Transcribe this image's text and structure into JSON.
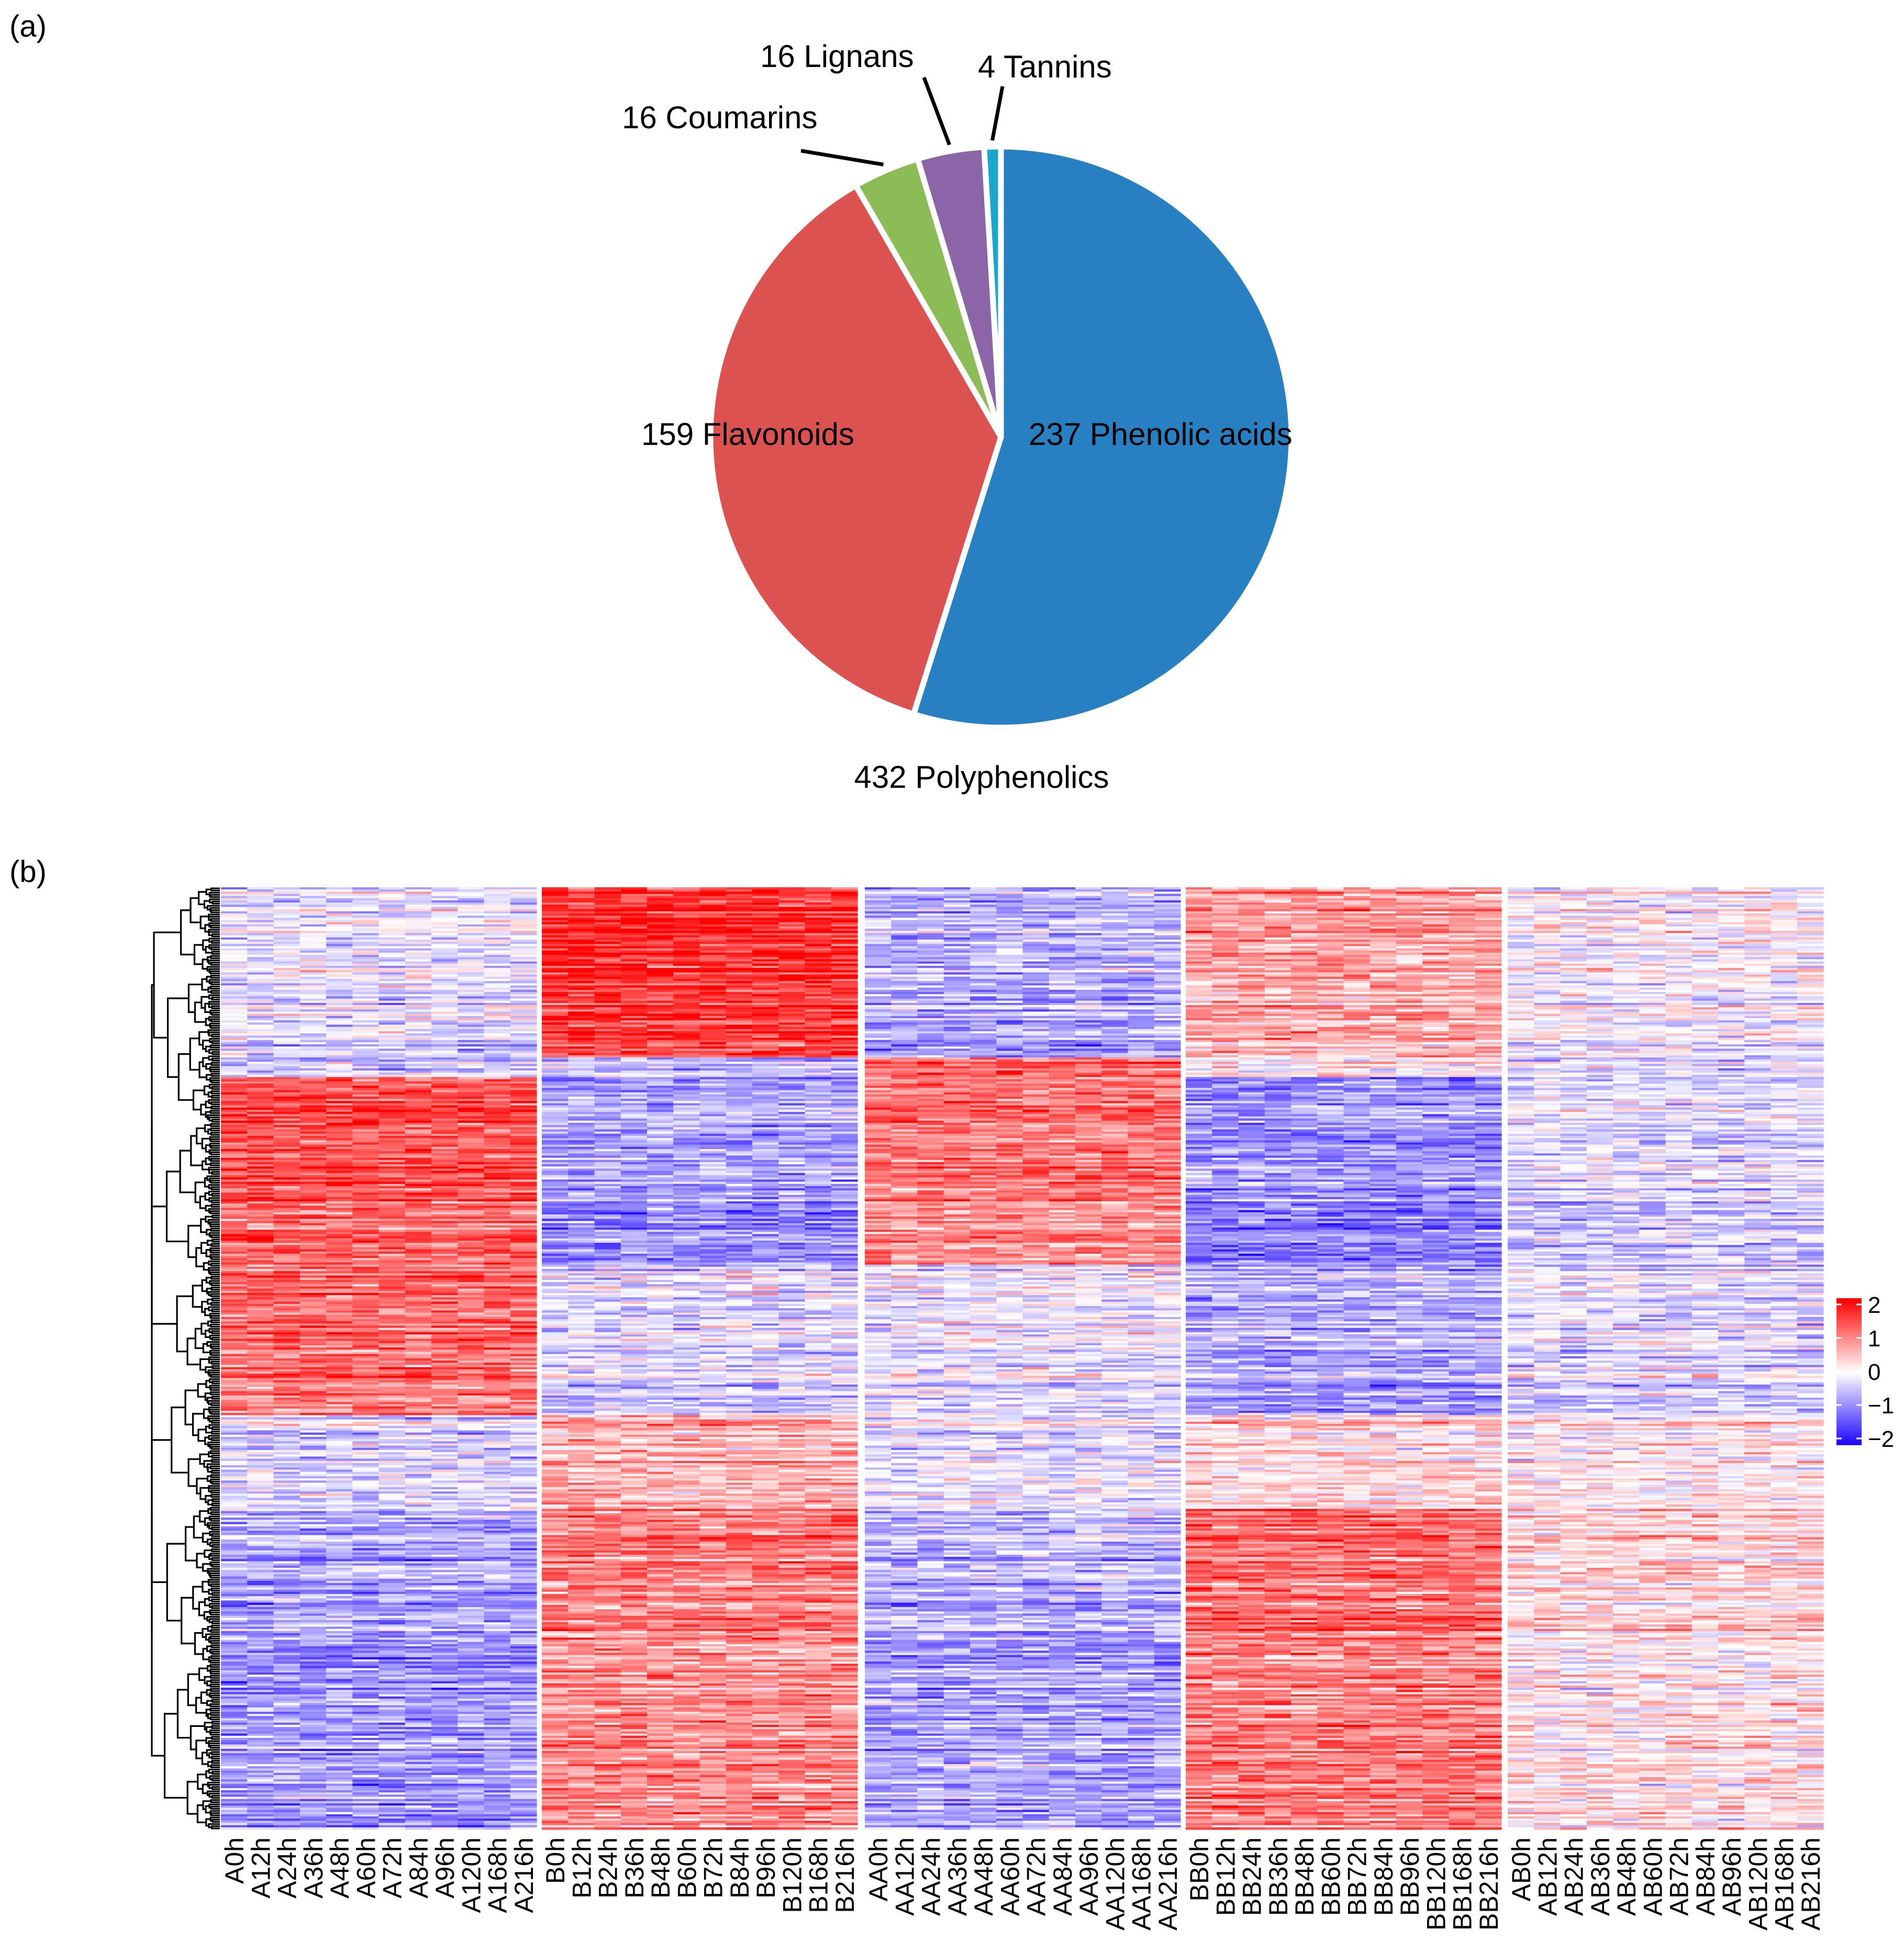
{
  "panel_labels": {
    "a": "(a)",
    "b": "(b)"
  },
  "chart_data": [
    {
      "type": "pie",
      "panel": "(a)",
      "title": "432 Polyphenolics",
      "total": 432,
      "slices": [
        {
          "label": "237 Phenolic acids",
          "value": 237,
          "color": "#2680c2"
        },
        {
          "label": "159 Flavonoids",
          "value": 159,
          "color": "#dc5250"
        },
        {
          "label": "16 Coumarins",
          "value": 16,
          "color": "#8cbc55"
        },
        {
          "label": "16 Lignans",
          "value": 16,
          "color": "#8a65a8"
        },
        {
          "label": "4 Tannins",
          "value": 4,
          "color": "#1ba6cc"
        }
      ]
    },
    {
      "type": "heatmap",
      "panel": "(b)",
      "row_count": 432,
      "row_dendrogram": true,
      "colorscale": {
        "min": -2,
        "max": 2,
        "low": "#0000ff",
        "mid": "#ffffff",
        "high": "#ff0000"
      },
      "legend_ticks": [
        "2",
        "1",
        "0",
        "−1",
        "−2"
      ],
      "legend_values": [
        2,
        1,
        0,
        -1,
        -2
      ],
      "groups": [
        {
          "name": "A",
          "columns": [
            "A0h",
            "A12h",
            "A24h",
            "A36h",
            "A48h",
            "A60h",
            "A72h",
            "A84h",
            "A96h",
            "A120h",
            "A168h",
            "A216h"
          ]
        },
        {
          "name": "B",
          "columns": [
            "B0h",
            "B12h",
            "B24h",
            "B36h",
            "B48h",
            "B60h",
            "B72h",
            "B84h",
            "B96h",
            "B120h",
            "B168h",
            "B216h"
          ]
        },
        {
          "name": "AA",
          "columns": [
            "AA0h",
            "AA12h",
            "AA24h",
            "AA36h",
            "AA48h",
            "AA60h",
            "AA72h",
            "AA84h",
            "AA96h",
            "AA120h",
            "AA168h",
            "AA216h"
          ]
        },
        {
          "name": "BB",
          "columns": [
            "BB0h",
            "BB12h",
            "BB24h",
            "BB36h",
            "BB48h",
            "BB60h",
            "BB72h",
            "BB84h",
            "BB96h",
            "BB120h",
            "BB168h",
            "BB216h"
          ]
        },
        {
          "name": "AB",
          "columns": [
            "AB0h",
            "AB12h",
            "AB24h",
            "AB36h",
            "AB48h",
            "AB60h",
            "AB72h",
            "AB84h",
            "AB96h",
            "AB120h",
            "AB168h",
            "AB216h"
          ]
        }
      ],
      "row_blocks": [
        {
          "rows": 0.18,
          "means": [
            -0.2,
            1.6,
            -0.6,
            0.7,
            0.0
          ]
        },
        {
          "rows": 0.02,
          "means": [
            -0.3,
            -0.3,
            1.4,
            0.3,
            -0.1
          ]
        },
        {
          "rows": 0.2,
          "means": [
            1.3,
            -0.8,
            1.0,
            -0.9,
            -0.3
          ]
        },
        {
          "rows": 0.16,
          "means": [
            1.1,
            -0.3,
            -0.2,
            -0.7,
            -0.3
          ]
        },
        {
          "rows": 0.1,
          "means": [
            -0.3,
            0.6,
            -0.2,
            0.3,
            0.1
          ]
        },
        {
          "rows": 0.34,
          "means": [
            -0.8,
            0.9,
            -0.7,
            1.0,
            0.2
          ]
        }
      ]
    }
  ]
}
